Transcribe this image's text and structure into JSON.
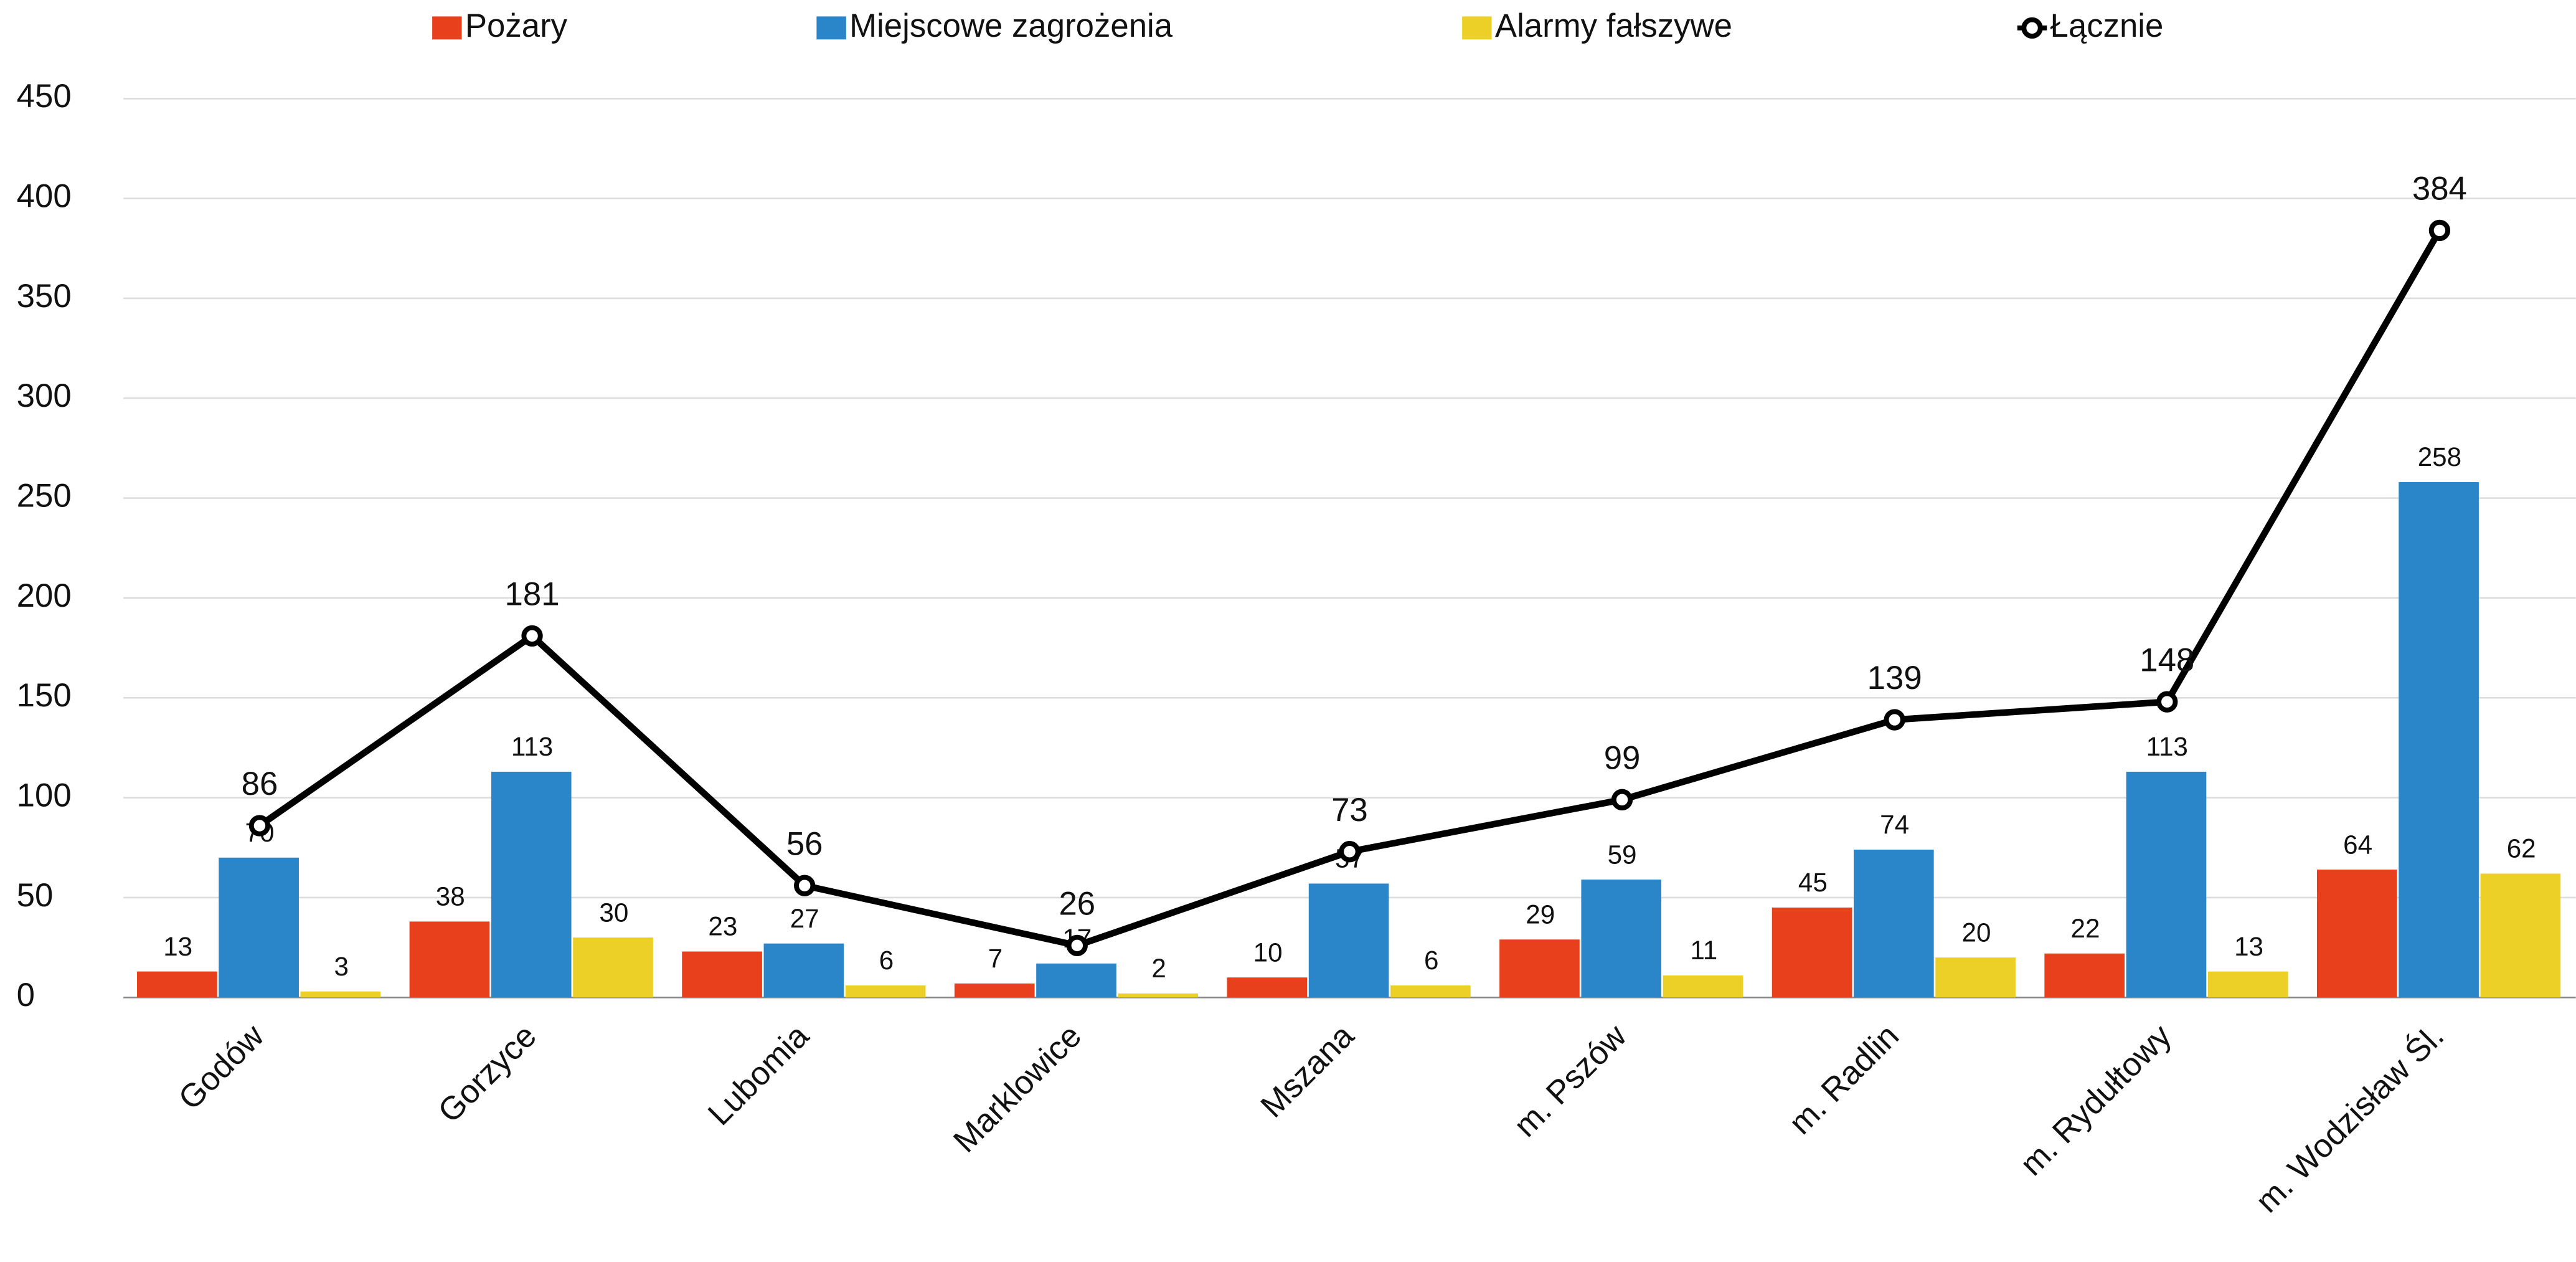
{
  "chart_data": {
    "type": "bar",
    "categories": [
      "Godów",
      "Gorzyce",
      "Lubomia",
      "Marklowice",
      "Mszana",
      "m. Pszów",
      "m. Radlin",
      "m. Rydułtowy",
      "m. Wodzisław Śl."
    ],
    "series": [
      {
        "name": "Pożary",
        "color": "#e8401c",
        "values": [
          13,
          38,
          23,
          7,
          10,
          29,
          45,
          22,
          64
        ]
      },
      {
        "name": "Miejscowe zagrożenia",
        "color": "#2b86c9",
        "values": [
          70,
          113,
          27,
          17,
          57,
          59,
          74,
          113,
          258
        ]
      },
      {
        "name": "Alarmy fałszywe",
        "color": "#ecd027",
        "values": [
          3,
          30,
          6,
          2,
          6,
          11,
          20,
          13,
          62
        ]
      },
      {
        "name": "Łącznie",
        "type": "line",
        "color": "#000000",
        "values": [
          86,
          181,
          56,
          26,
          73,
          99,
          139,
          148,
          384
        ]
      }
    ],
    "ylim": [
      0,
      450
    ],
    "yticks": [
      0,
      50,
      100,
      150,
      200,
      250,
      300,
      350,
      400,
      450
    ],
    "grid": true,
    "legend": "top"
  }
}
